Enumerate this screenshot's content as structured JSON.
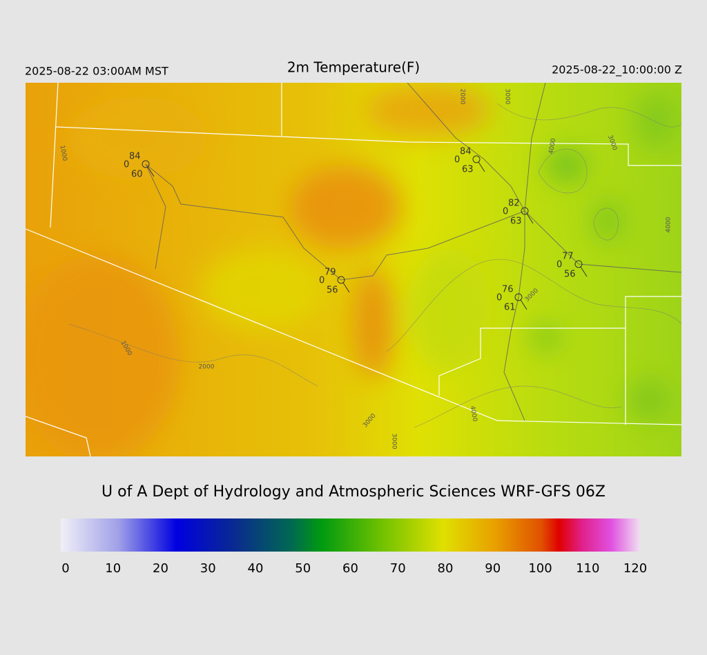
{
  "header": {
    "left": "2025-08-22 03:00AM MST",
    "title": "2m Temperature(F)",
    "right": "2025-08-22_10:00:00 Z"
  },
  "stations": [
    {
      "temperature": 84,
      "cloud": 0,
      "dewpoint": 60
    },
    {
      "temperature": 84,
      "cloud": 0,
      "dewpoint": 63
    },
    {
      "temperature": 82,
      "cloud": 0,
      "dewpoint": 63
    },
    {
      "temperature": 77,
      "cloud": 0,
      "dewpoint": 56
    },
    {
      "temperature": 79,
      "cloud": 0,
      "dewpoint": 56
    },
    {
      "temperature": 76,
      "cloud": 0,
      "dewpoint": 61
    }
  ],
  "contour_labels": [
    1000,
    2000,
    3000,
    4000,
    3000,
    4000,
    3000,
    1000,
    2000,
    3000,
    3000,
    4000
  ],
  "credit": "U of A Dept of Hydrology and Atmospheric Sciences WRF-GFS 06Z",
  "colorbar": {
    "ticks": [
      0,
      10,
      20,
      30,
      40,
      50,
      60,
      70,
      80,
      90,
      100,
      110,
      120
    ]
  }
}
